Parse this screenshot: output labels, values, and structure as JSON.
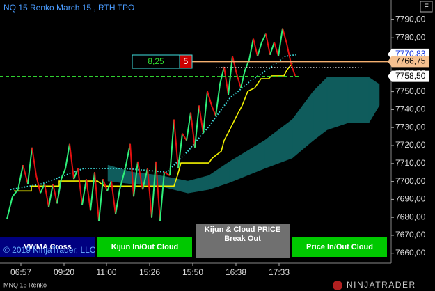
{
  "chart_data": {
    "type": "line",
    "title": "NQ 15 Renko March 15 , RTH TPO",
    "instrument": "MNQ 15 Renko",
    "copyright": "© 2019 NinjaTrader, LLC",
    "brand": "NINJATRADER",
    "button": "F",
    "xlim": [
      0,
      560
    ],
    "xticks": [
      {
        "value": 30,
        "label": "06:57"
      },
      {
        "value": 92,
        "label": "09:20"
      },
      {
        "value": 153,
        "label": "11:00"
      },
      {
        "value": 215,
        "label": "15:26"
      },
      {
        "value": 277,
        "label": "15:50"
      },
      {
        "value": 339,
        "label": "16:38"
      },
      {
        "value": 401,
        "label": "17:33"
      }
    ],
    "ylim": [
      7654.5,
      7801
    ],
    "yticks": [
      {
        "value": 7660,
        "label": "7660,00"
      },
      {
        "value": 7670,
        "label": "7670,00"
      },
      {
        "value": 7680,
        "label": "7680,00"
      },
      {
        "value": 7690,
        "label": "7690,00"
      },
      {
        "value": 7700,
        "label": "7700,00"
      },
      {
        "value": 7710,
        "label": "7710,00"
      },
      {
        "value": 7720,
        "label": "7720,00"
      },
      {
        "value": 7730,
        "label": "7730,00"
      },
      {
        "value": 7740,
        "label": "7740,00"
      },
      {
        "value": 7750,
        "label": "7750,00"
      },
      {
        "value": 7760,
        "label": "7760,00"
      },
      {
        "value": 7770,
        "label": "7770,00"
      },
      {
        "value": 7780,
        "label": "7780,00"
      },
      {
        "value": 7790,
        "label": "7790,00"
      }
    ],
    "series": [
      {
        "kind": "renko",
        "up_color": "#2ef07a",
        "down_color": "#e41010",
        "x": [
          10,
          18,
          26,
          33,
          40,
          46,
          52,
          58,
          64,
          70,
          76,
          82,
          88,
          94,
          100,
          106,
          112,
          118,
          124,
          130,
          136,
          142,
          148,
          154,
          160,
          166,
          172,
          180,
          187,
          192,
          198,
          205,
          212,
          218,
          224,
          230,
          236,
          244,
          250,
          256,
          262,
          268,
          274,
          280,
          286,
          292,
          298,
          304,
          310,
          316,
          322,
          328,
          334,
          340,
          346,
          352,
          358,
          364,
          370,
          376,
          382,
          388,
          394,
          400,
          406,
          412,
          418,
          424
        ],
        "values": [
          7679.1,
          7691.6,
          7695.5,
          7709.1,
          7698.6,
          7718.9,
          7703.3,
          7693.5,
          7698.6,
          7685.7,
          7698.6,
          7687.7,
          7701.3,
          7707.2,
          7720.9,
          7701.3,
          7707.2,
          7686.9,
          7701.3,
          7683.8,
          7705.2,
          7677.9,
          7701.3,
          7694.7,
          7700.2,
          7681.8,
          7695.5,
          7707.2,
          7720.9,
          7691.6,
          7711.1,
          7695.5,
          7707.2,
          7679.8,
          7711.1,
          7677.9,
          7705.2,
          7703.3,
          7734.5,
          7707.2,
          7726.7,
          7722.8,
          7738.4,
          7718.9,
          7742.3,
          7726.7,
          7750.2,
          7742.3,
          7736.5,
          7754.1,
          7763.8,
          7748.2,
          7769.7,
          7759.9,
          7752.1,
          7761.9,
          7767.7,
          7779.5,
          7769.7,
          7777.5,
          7782.2,
          7770.5,
          7777.5,
          7769.7,
          7785.3,
          7776.7,
          7765.8,
          7758.8
        ]
      },
      {
        "kind": "line",
        "color": "#f2f200",
        "style": "solid",
        "x": [
          20,
          45,
          45,
          85,
          85,
          140,
          150,
          250,
          255,
          260,
          300,
          305,
          318,
          322,
          330,
          340,
          348,
          356,
          366,
          375,
          386,
          390,
          408,
          412,
          420
        ],
        "values": [
          7694.7,
          7694.7,
          7697.4,
          7697.4,
          7700.2,
          7700.2,
          7697.4,
          7697.4,
          7703.3,
          7710.3,
          7710.3,
          7713.0,
          7716.9,
          7722.8,
          7728.7,
          7736.5,
          7742.3,
          7750.2,
          7752.1,
          7757.2,
          7757.2,
          7758.8,
          7758.8,
          7761.9,
          7765.8
        ]
      },
      {
        "kind": "line",
        "color": "#3fe0e0",
        "style": "dotted",
        "x": [
          15,
          60,
          120,
          180,
          240,
          270,
          300,
          330,
          360,
          390,
          410,
          425
        ],
        "values": [
          7695.5,
          7698.6,
          7707.2,
          7707.2,
          7705.2,
          7716.9,
          7730.6,
          7746.3,
          7756.0,
          7763.8,
          7769.7,
          7770.5
        ]
      },
      {
        "kind": "cloud",
        "color": "#0f5c5c",
        "x": [
          155,
          190,
          230,
          270,
          300,
          330,
          380,
          420,
          450,
          470,
          500,
          530,
          545
        ],
        "upper": [
          7709.1,
          7705.2,
          7703.3,
          7700.2,
          7703.3,
          7711.1,
          7722.8,
          7734.5,
          7750.2,
          7758.0,
          7758.0,
          7758.0,
          7754.1
        ],
        "lower": [
          7700.2,
          7698.6,
          7697.4,
          7693.5,
          7695.5,
          7699.4,
          7707.2,
          7713.0,
          7722.8,
          7728.7,
          7732.6,
          7732.6,
          7742.3
        ]
      }
    ],
    "levels": [
      {
        "value": 7766.75,
        "color": "#f5b070",
        "style": "solid",
        "x": [
          275,
          560
        ]
      },
      {
        "value": 7758.5,
        "color": "#30d030",
        "style": "dashed",
        "x": [
          0,
          430
        ]
      },
      {
        "value": 7763.4,
        "color": "#ffffff",
        "style": "dotted",
        "x": [
          310,
          520
        ]
      }
    ],
    "price_markers": [
      {
        "value": 7770.83,
        "label": "7770,83",
        "background": "#ffffff",
        "color": "#1030e0"
      },
      {
        "value": 7766.75,
        "label": "7766,75",
        "background": "#f5c090",
        "color": "#000000"
      },
      {
        "value": 7758.5,
        "label": "7758,50",
        "background": "#ffffff",
        "color": "#000000"
      }
    ],
    "box": {
      "left": "8,25",
      "right": "5"
    },
    "signals": [
      {
        "label": "VWMA Cross",
        "color": "#000080"
      },
      {
        "label": "Kijun In/Out Cloud",
        "color": "#00c800"
      },
      {
        "label": "Kijun & Cloud PRICE Break Out",
        "color": "#707070"
      },
      {
        "label": "Price In/Out Cloud",
        "color": "#00c800"
      }
    ]
  }
}
